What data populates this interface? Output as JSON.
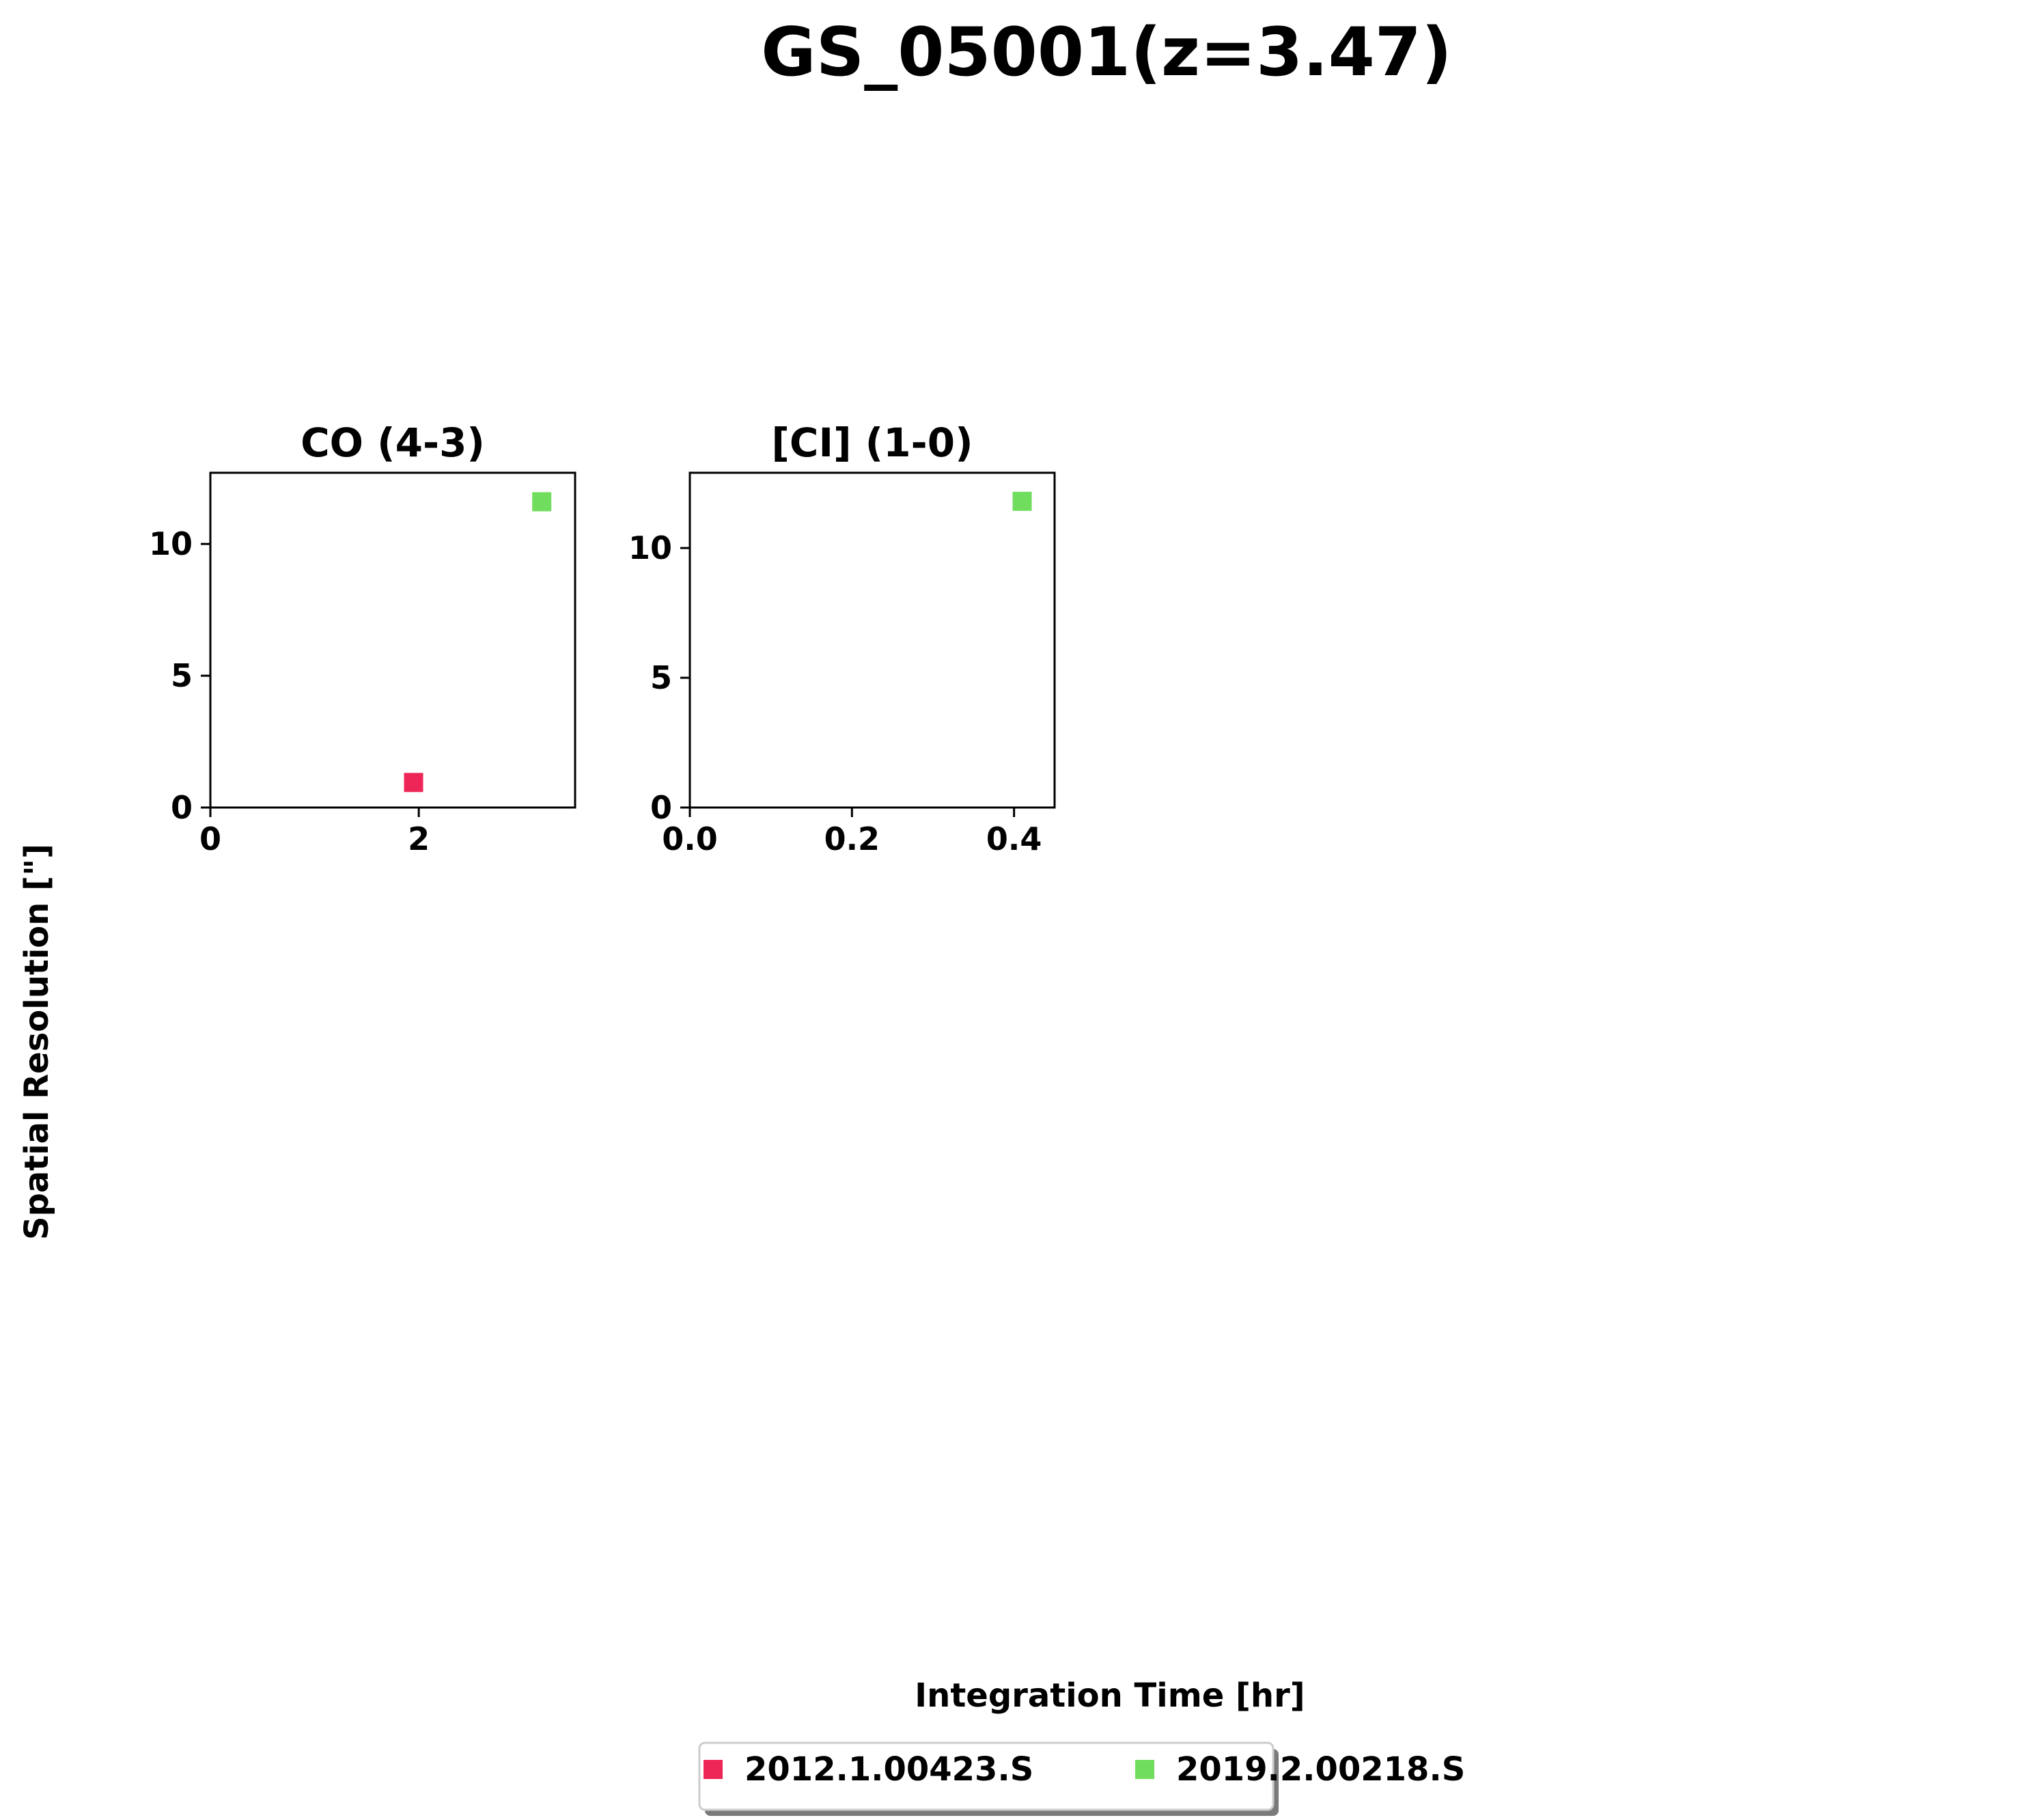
{
  "figure": {
    "suptitle": "GS_05001(z=3.47)",
    "xlabel": "Integration Time [hr]",
    "ylabel": "Spatial Resolution [\"]"
  },
  "legend": {
    "placement": "bottom-center",
    "entries": [
      {
        "label": "2012.1.00423.S",
        "color": "#ee2657"
      },
      {
        "label": "2019.2.00218.S",
        "color": "#71dd5f"
      }
    ]
  },
  "chart_data": [
    {
      "type": "scatter",
      "title": "CO (4-3)",
      "xlim": [
        0,
        3.5
      ],
      "ylim": [
        0,
        12.7
      ],
      "xticks": [
        0,
        2
      ],
      "xtick_labels": [
        "0",
        "2"
      ],
      "yticks": [
        0,
        5,
        10
      ],
      "ytick_labels": [
        "0",
        "5",
        "10"
      ],
      "series": [
        {
          "name": "2012.1.00423.S",
          "color": "#ee2657",
          "points": [
            {
              "x": 1.95,
              "y": 0.95
            }
          ]
        },
        {
          "name": "2019.2.00218.S",
          "color": "#71dd5f",
          "points": [
            {
              "x": 3.18,
              "y": 11.6
            }
          ]
        }
      ]
    },
    {
      "type": "scatter",
      "title": "[CI] (1-0)",
      "xlim": [
        0,
        0.45
      ],
      "ylim": [
        0,
        12.9
      ],
      "xticks": [
        0,
        0.2,
        0.4
      ],
      "xtick_labels": [
        "0.0",
        "0.2",
        "0.4"
      ],
      "yticks": [
        0,
        5,
        10
      ],
      "ytick_labels": [
        "0",
        "5",
        "10"
      ],
      "series": [
        {
          "name": "2019.2.00218.S",
          "color": "#71dd5f",
          "points": [
            {
              "x": 0.41,
              "y": 11.8
            }
          ]
        }
      ]
    }
  ]
}
